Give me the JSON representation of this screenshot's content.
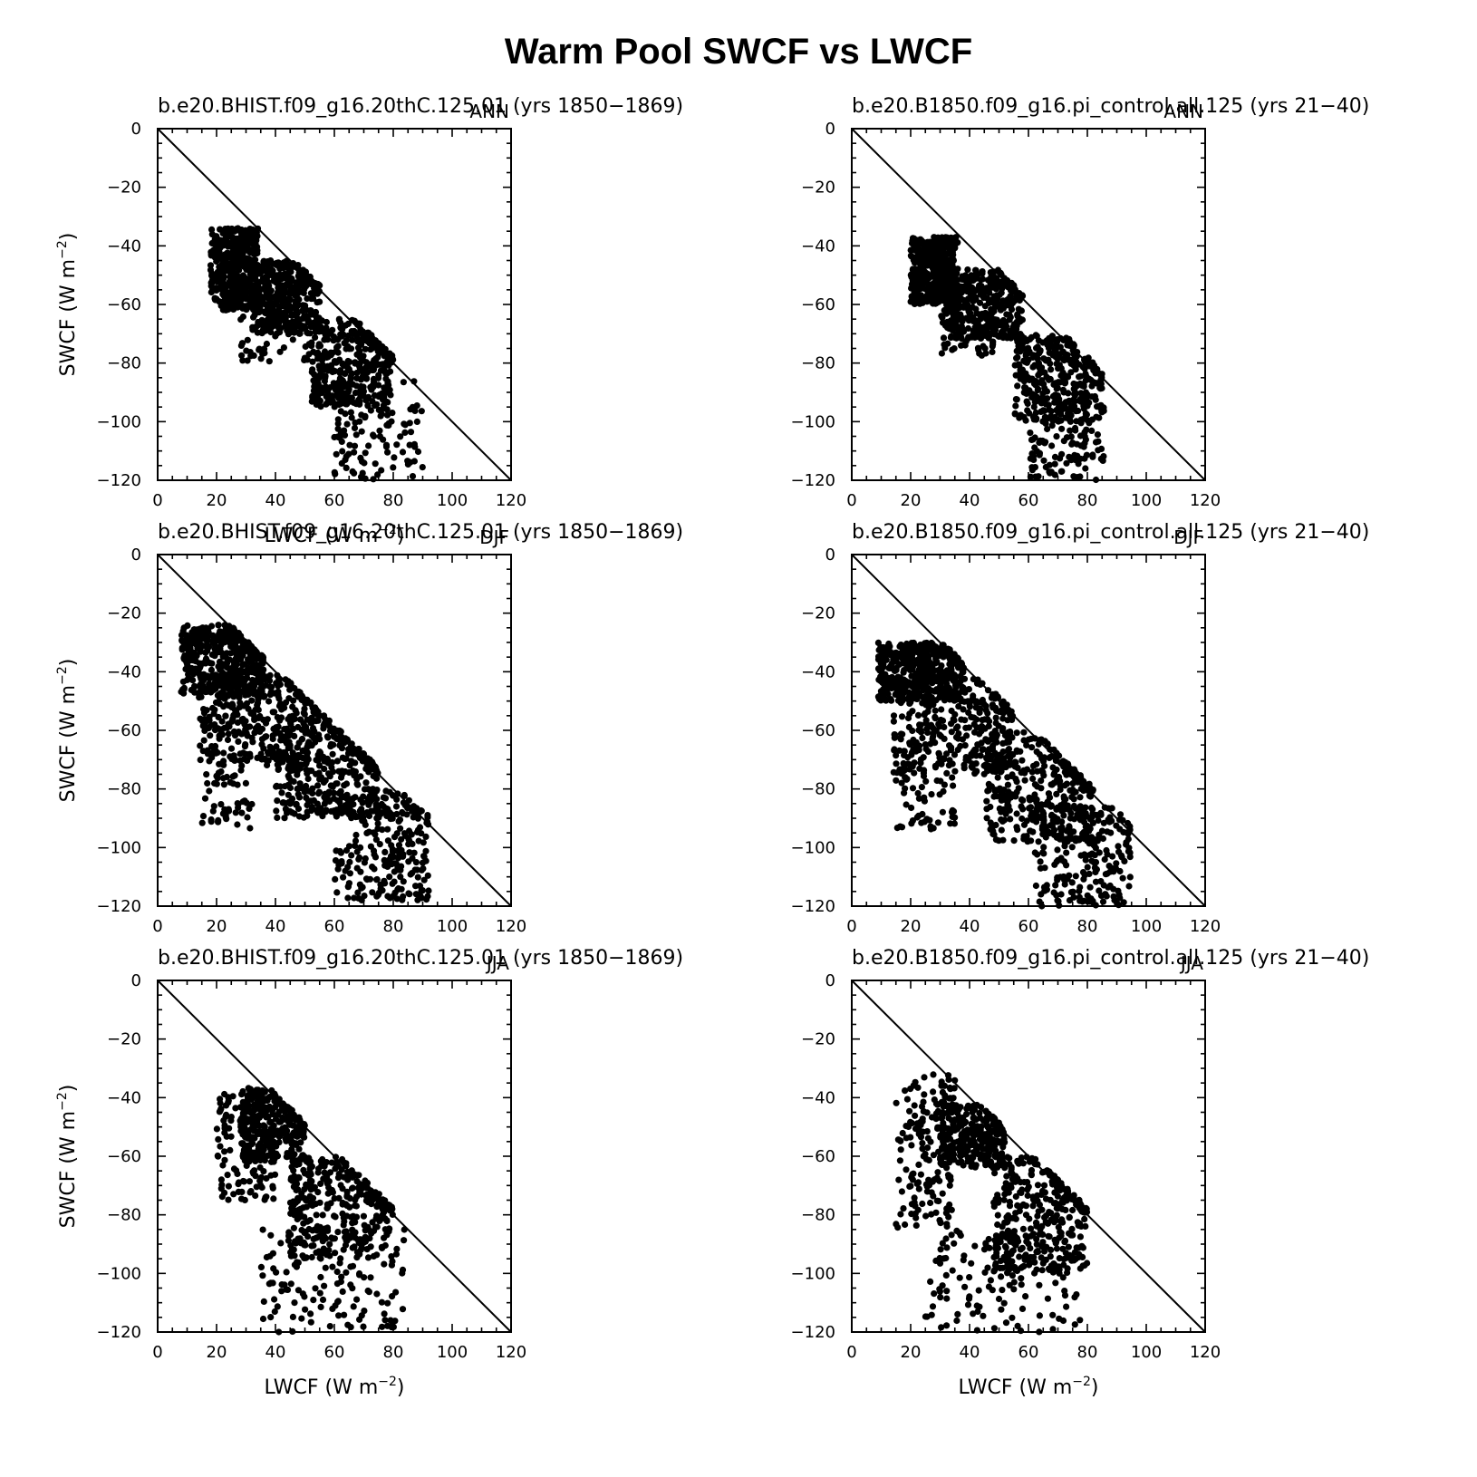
{
  "figure_title": "Warm Pool SWCF vs LWCF",
  "x_axis_label": "LWCF (W m",
  "y_axis_label": "SWCF (W m",
  "axis_unit_exponent": "−2",
  "colors": {
    "marker": "#000000",
    "line": "#000000",
    "background": "#ffffff"
  },
  "chart_data": [
    {
      "type": "scatter",
      "title": "b.e20.BHIST.f09_g16.20thC.125.01 (yrs 1850−1869)",
      "season": "ANN",
      "xlabel": "LWCF (W m−2)",
      "ylabel": "SWCF (W m−2)",
      "xlim": [
        0,
        120
      ],
      "ylim": [
        -120,
        0
      ],
      "xticks": [
        0,
        20,
        40,
        60,
        80,
        100,
        120
      ],
      "yticks": [
        0,
        -20,
        -40,
        -60,
        -80,
        -100,
        -120
      ],
      "reference_line": {
        "x": [
          0,
          120
        ],
        "y": [
          0,
          -120
        ]
      },
      "clusters": [
        {
          "x": [
            18,
            34
          ],
          "y": [
            -34,
            -62
          ],
          "n": 420
        },
        {
          "x": [
            32,
            55
          ],
          "y": [
            -45,
            -70
          ],
          "n": 380
        },
        {
          "x": [
            52,
            80
          ],
          "y": [
            -65,
            -95
          ],
          "n": 360
        },
        {
          "x": [
            60,
            90
          ],
          "y": [
            -85,
            -120
          ],
          "n": 120
        },
        {
          "x": [
            28,
            52
          ],
          "y": [
            -62,
            -80
          ],
          "n": 60
        }
      ]
    },
    {
      "type": "scatter",
      "title": "b.e20.B1850.f09_g16.pi_control.all.125 (yrs 21−40)",
      "season": "ANN",
      "xlabel": "",
      "ylabel": "",
      "xlim": [
        0,
        120
      ],
      "ylim": [
        -120,
        0
      ],
      "xticks": [
        0,
        20,
        40,
        60,
        80,
        100,
        120
      ],
      "yticks": [
        0,
        -20,
        -40,
        -60,
        -80,
        -100,
        -120
      ],
      "reference_line": {
        "x": [
          0,
          120
        ],
        "y": [
          0,
          -120
        ]
      },
      "clusters": [
        {
          "x": [
            20,
            36
          ],
          "y": [
            -37,
            -60
          ],
          "n": 420
        },
        {
          "x": [
            32,
            58
          ],
          "y": [
            -48,
            -72
          ],
          "n": 380
        },
        {
          "x": [
            55,
            85
          ],
          "y": [
            -70,
            -100
          ],
          "n": 360
        },
        {
          "x": [
            60,
            86
          ],
          "y": [
            -90,
            -120
          ],
          "n": 120
        },
        {
          "x": [
            30,
            48
          ],
          "y": [
            -62,
            -78
          ],
          "n": 60
        }
      ]
    },
    {
      "type": "scatter",
      "title": "b.e20.BHIST.f09_g16.20thC.125.01 (yrs 1850−1869)",
      "season": "DJF",
      "xlabel": "",
      "ylabel": "SWCF (W m−2)",
      "xlim": [
        0,
        120
      ],
      "ylim": [
        -120,
        0
      ],
      "xticks": [
        0,
        20,
        40,
        60,
        80,
        100,
        120
      ],
      "yticks": [
        0,
        -20,
        -40,
        -60,
        -80,
        -100,
        -120
      ],
      "reference_line": {
        "x": [
          0,
          120
        ],
        "y": [
          0,
          -120
        ]
      },
      "clusters": [
        {
          "x": [
            8,
            36
          ],
          "y": [
            -24,
            -48
          ],
          "n": 420
        },
        {
          "x": [
            14,
            55
          ],
          "y": [
            -40,
            -72
          ],
          "n": 360
        },
        {
          "x": [
            40,
            75
          ],
          "y": [
            -55,
            -90
          ],
          "n": 360
        },
        {
          "x": [
            60,
            92
          ],
          "y": [
            -80,
            -118
          ],
          "n": 260
        },
        {
          "x": [
            15,
            32
          ],
          "y": [
            -72,
            -94
          ],
          "n": 50
        }
      ]
    },
    {
      "type": "scatter",
      "title": "b.e20.B1850.f09_g16.pi_control.all.125 (yrs 21−40)",
      "season": "DJF",
      "xlabel": "",
      "ylabel": "",
      "xlim": [
        0,
        120
      ],
      "ylim": [
        -120,
        0
      ],
      "xticks": [
        0,
        20,
        40,
        60,
        80,
        100,
        120
      ],
      "yticks": [
        0,
        -20,
        -40,
        -60,
        -80,
        -100,
        -120
      ],
      "reference_line": {
        "x": [
          0,
          120
        ],
        "y": [
          0,
          -120
        ]
      },
      "clusters": [
        {
          "x": [
            9,
            38
          ],
          "y": [
            -30,
            -50
          ],
          "n": 420
        },
        {
          "x": [
            14,
            55
          ],
          "y": [
            -42,
            -75
          ],
          "n": 360
        },
        {
          "x": [
            45,
            82
          ],
          "y": [
            -60,
            -98
          ],
          "n": 360
        },
        {
          "x": [
            62,
            95
          ],
          "y": [
            -85,
            -120
          ],
          "n": 220
        },
        {
          "x": [
            15,
            35
          ],
          "y": [
            -75,
            -94
          ],
          "n": 50
        }
      ]
    },
    {
      "type": "scatter",
      "title": "b.e20.BHIST.f09_g16.20thC.125.01 (yrs 1850−1869)",
      "season": "JJA",
      "xlabel": "LWCF (W m−2)",
      "ylabel": "SWCF (W m−2)",
      "xlim": [
        0,
        120
      ],
      "ylim": [
        -120,
        0
      ],
      "xticks": [
        0,
        20,
        40,
        60,
        80,
        100,
        120
      ],
      "yticks": [
        0,
        -20,
        -40,
        -60,
        -80,
        -100,
        -120
      ],
      "reference_line": {
        "x": [
          0,
          120
        ],
        "y": [
          0,
          -120
        ]
      },
      "clusters": [
        {
          "x": [
            28,
            50
          ],
          "y": [
            -37,
            -62
          ],
          "n": 300
        },
        {
          "x": [
            20,
            40
          ],
          "y": [
            -36,
            -75
          ],
          "n": 140
        },
        {
          "x": [
            45,
            80
          ],
          "y": [
            -60,
            -95
          ],
          "n": 320
        },
        {
          "x": [
            35,
            84
          ],
          "y": [
            -85,
            -120
          ],
          "n": 140
        }
      ]
    },
    {
      "type": "scatter",
      "title": "b.e20.B1850.f09_g16.pi_control.all.125 (yrs 21−40)",
      "season": "JJA",
      "xlabel": "LWCF (W m−2)",
      "ylabel": "",
      "xlim": [
        0,
        120
      ],
      "ylim": [
        -120,
        0
      ],
      "xticks": [
        0,
        20,
        40,
        60,
        80,
        100,
        120
      ],
      "yticks": [
        0,
        -20,
        -40,
        -60,
        -80,
        -100,
        -120
      ],
      "reference_line": {
        "x": [
          0,
          120
        ],
        "y": [
          0,
          -120
        ]
      },
      "clusters": [
        {
          "x": [
            30,
            52
          ],
          "y": [
            -42,
            -64
          ],
          "n": 300
        },
        {
          "x": [
            15,
            35
          ],
          "y": [
            -32,
            -85
          ],
          "n": 160
        },
        {
          "x": [
            48,
            80
          ],
          "y": [
            -60,
            -100
          ],
          "n": 320
        },
        {
          "x": [
            25,
            80
          ],
          "y": [
            -85,
            -120
          ],
          "n": 140
        }
      ]
    }
  ]
}
